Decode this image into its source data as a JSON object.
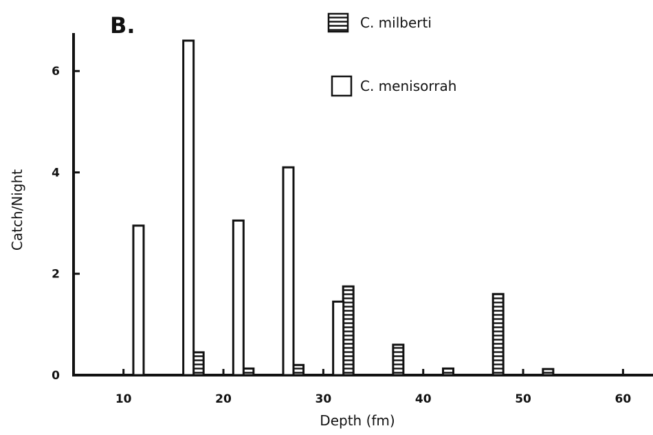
{
  "chart_data": {
    "type": "bar",
    "panel_label": "B.",
    "xlabel": "Depth (fm)",
    "ylabel": "Catch/Night",
    "xlim": [
      5,
      63
    ],
    "ylim": [
      0,
      6.75
    ],
    "xticks": [
      10,
      20,
      30,
      40,
      50,
      60
    ],
    "yticks": [
      0,
      2,
      4,
      6
    ],
    "legend_position": "top-center",
    "series": [
      {
        "name": "C. milberti",
        "pattern": "horizontal-hatch",
        "points": [
          {
            "x": 17.5,
            "y": 0.45
          },
          {
            "x": 22.5,
            "y": 0.13
          },
          {
            "x": 27.5,
            "y": 0.2
          },
          {
            "x": 32.5,
            "y": 1.75
          },
          {
            "x": 37.5,
            "y": 0.6
          },
          {
            "x": 42.5,
            "y": 0.13
          },
          {
            "x": 47.5,
            "y": 1.6
          },
          {
            "x": 52.5,
            "y": 0.12
          }
        ]
      },
      {
        "name": "C. menisorrah",
        "pattern": "open",
        "points": [
          {
            "x": 11.5,
            "y": 2.95
          },
          {
            "x": 16.5,
            "y": 6.6
          },
          {
            "x": 21.5,
            "y": 3.05
          },
          {
            "x": 26.5,
            "y": 4.1
          },
          {
            "x": 31.5,
            "y": 1.45
          }
        ]
      }
    ]
  }
}
